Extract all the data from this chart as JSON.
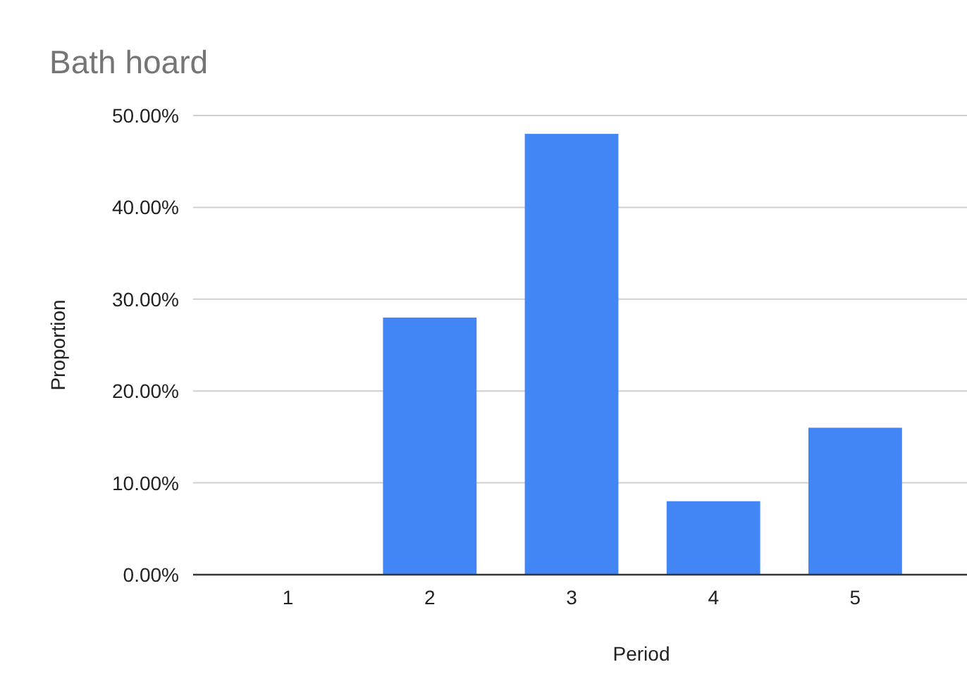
{
  "chart_data": {
    "type": "bar",
    "title": "Bath hoard",
    "xlabel": "Period",
    "ylabel": "Proportion",
    "categories": [
      "1",
      "2",
      "3",
      "4",
      "5"
    ],
    "values": [
      0,
      28,
      48,
      8,
      16
    ],
    "color": "#4285f4",
    "ylim": [
      0,
      50
    ],
    "yticks": [
      {
        "value": 0,
        "label": "0.00%"
      },
      {
        "value": 10,
        "label": "10.00%"
      },
      {
        "value": 20,
        "label": "20.00%"
      },
      {
        "value": 30,
        "label": "30.00%"
      },
      {
        "value": 40,
        "label": "40.00%"
      },
      {
        "value": 50,
        "label": "50.00%"
      }
    ],
    "grid": "y"
  }
}
